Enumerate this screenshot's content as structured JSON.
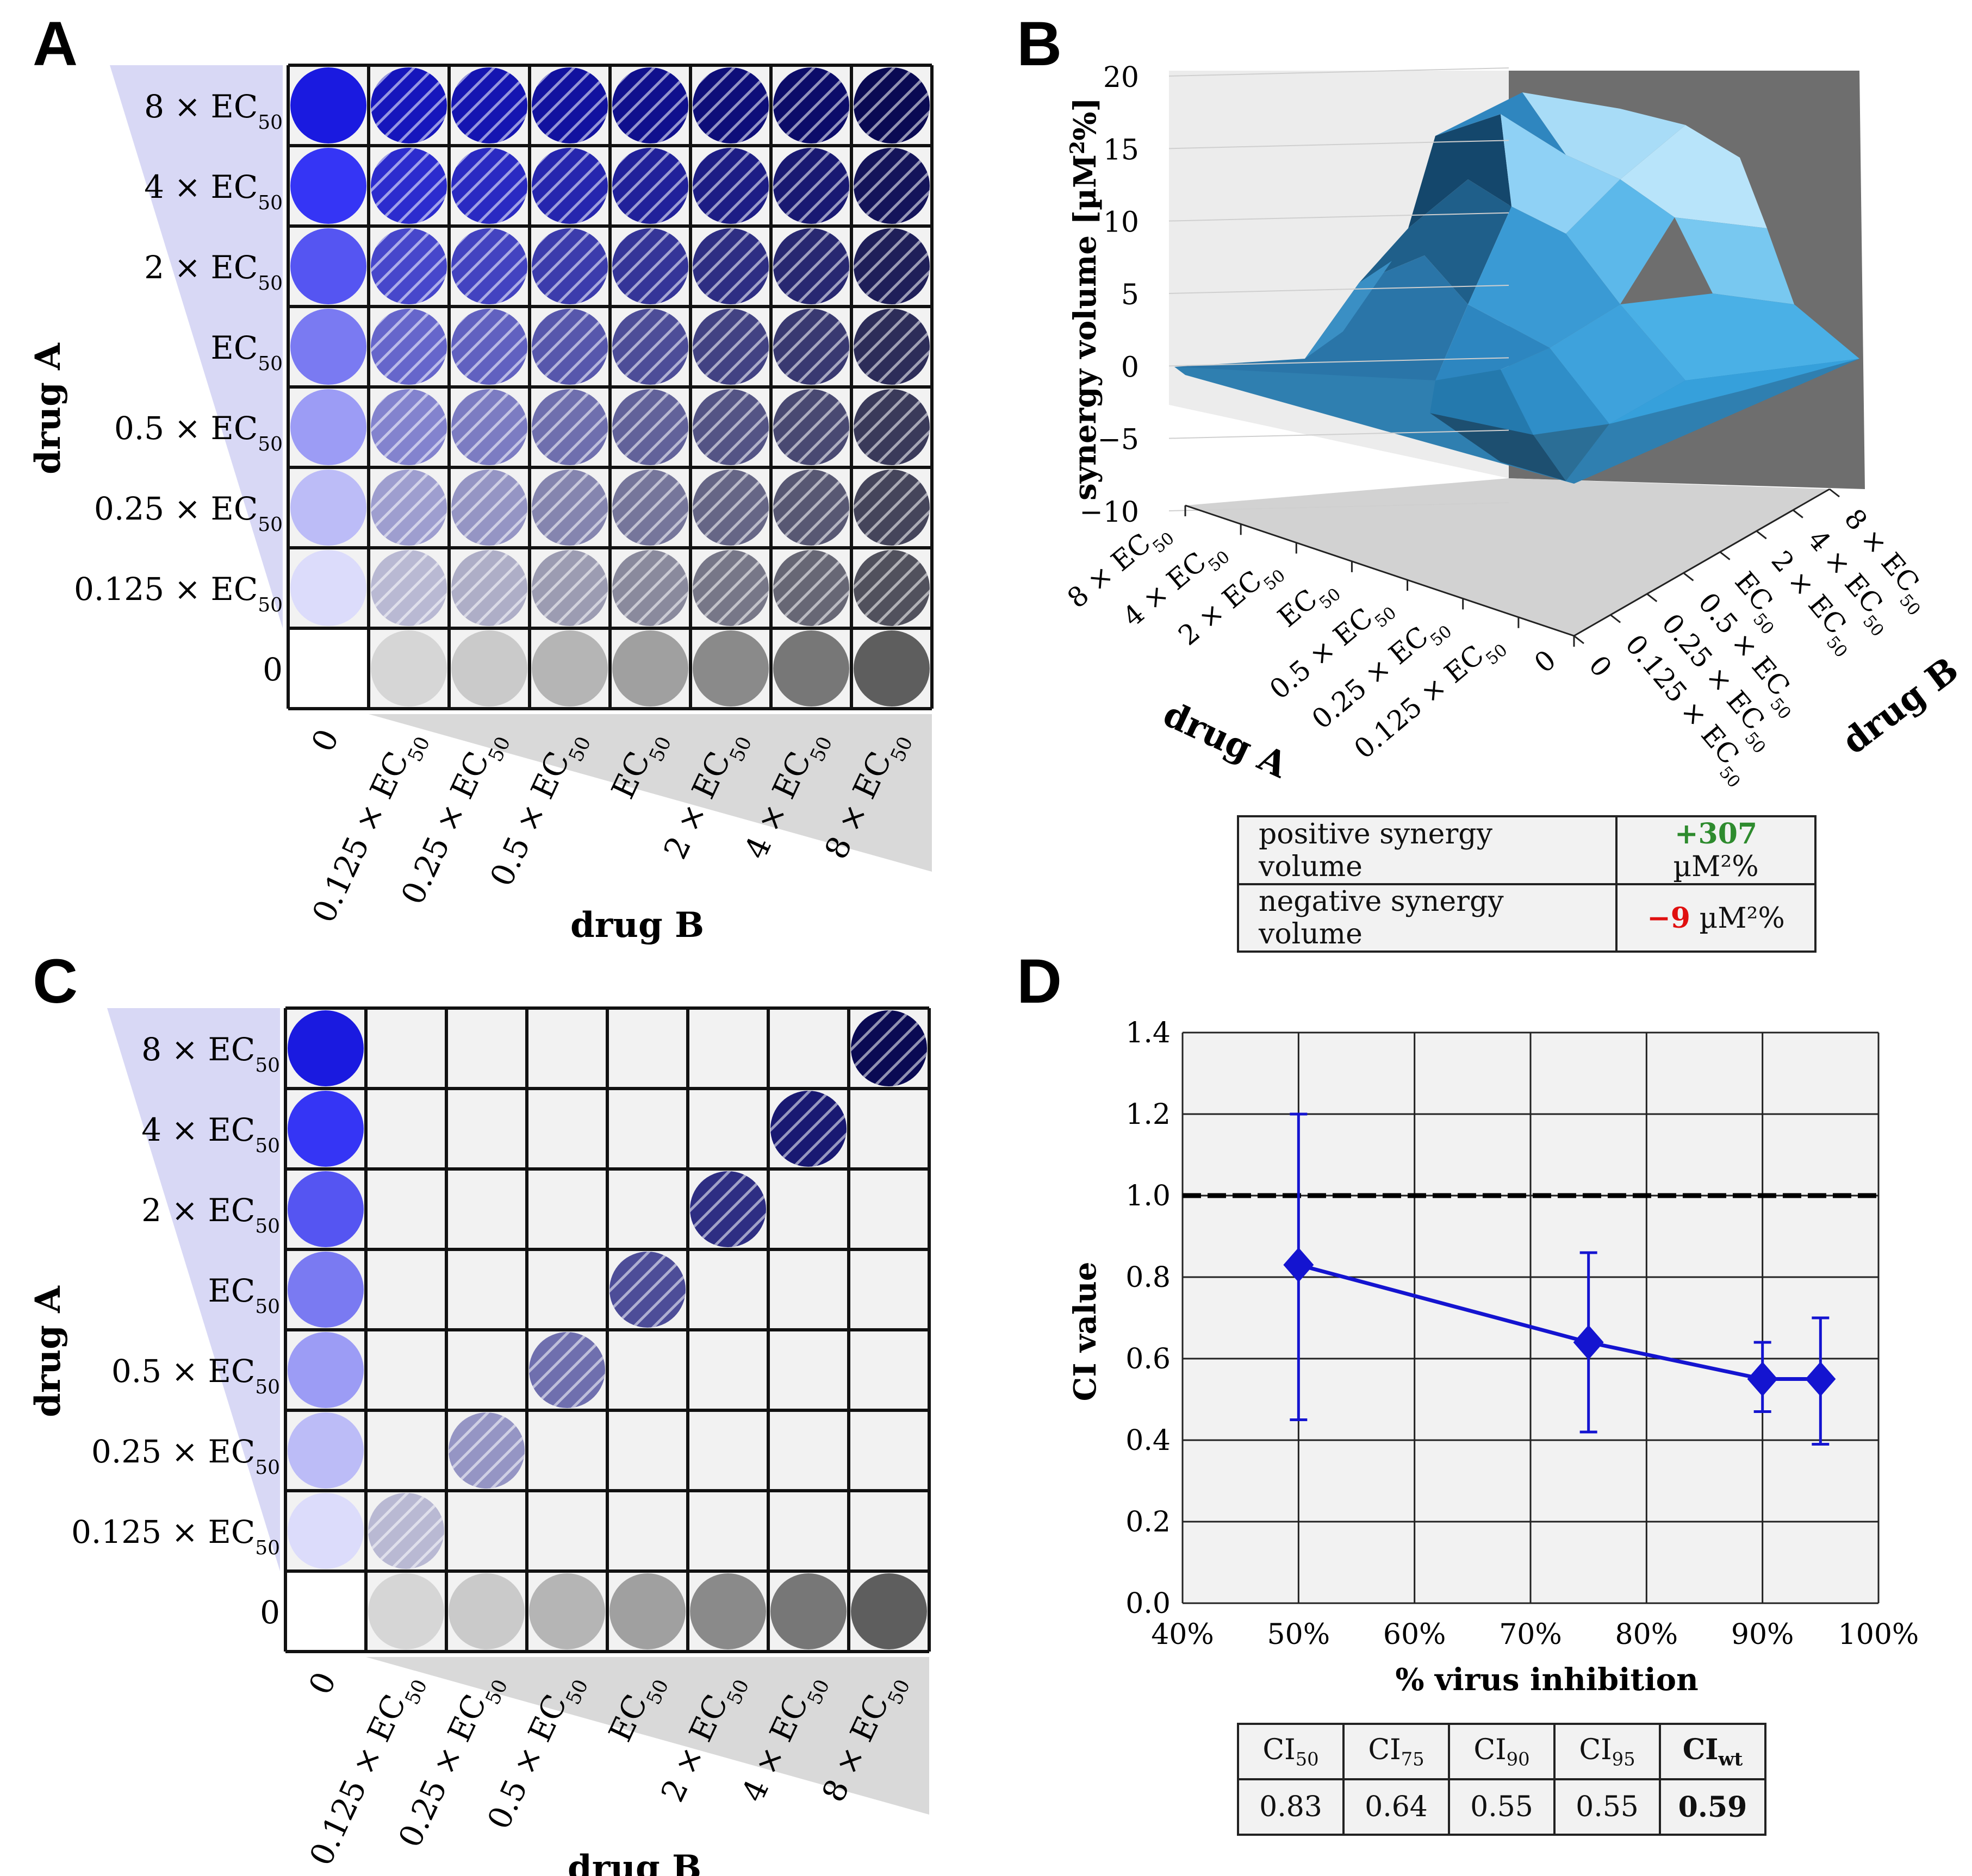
{
  "panels": {
    "a": "A",
    "b": "B",
    "c": "C",
    "d": "D"
  },
  "doses": {
    "row_labels": [
      "8 × EC",
      "4 × EC",
      "2 × EC",
      "EC",
      "0.5 × EC",
      "0.25 × EC",
      "0.125 × EC",
      "0"
    ],
    "col_labels": [
      "0",
      "0.125 × EC",
      "0.25 × EC",
      "0.5 × EC",
      "EC",
      "2 × EC",
      "4 × EC",
      "8 × EC"
    ],
    "sub": "50"
  },
  "labels": {
    "drug_a": "drug A",
    "drug_b": "drug B"
  },
  "colors": {
    "blue_series": [
      "#1a1ae0",
      "#3535f5",
      "#5555f2",
      "#7a7af2",
      "#9c9cf5",
      "#bcbcf7",
      "#dcdcfb",
      "#ffffff"
    ],
    "gray_series": [
      "#ffffff",
      "#d6d6d6",
      "#cacaca",
      "#b5b5b5",
      "#a0a0a0",
      "#8a8a8a",
      "#777777",
      "#5e5e5e"
    ],
    "triangle_blue": "#d8d8f5",
    "triangle_gray": "#d9d9d9",
    "grid_bg": "#f2f2f2",
    "surface": "#3b9fd6",
    "ci_line": "#1414d0"
  },
  "chart_data": [
    {
      "type": "heatmap",
      "panel": "A",
      "description_rows": "drug A concentration (top to bottom)",
      "rows": [
        "8 × EC50",
        "4 × EC50",
        "2 × EC50",
        "EC50",
        "0.5 × EC50",
        "0.25 × EC50",
        "0.125 × EC50",
        "0"
      ],
      "columns": [
        "0",
        "0.125 × EC50",
        "0.25 × EC50",
        "0.5 × EC50",
        "EC50",
        "2 × EC50",
        "4 × EC50",
        "8 × EC50"
      ],
      "filled_cells": "all",
      "xlabel": "drug B",
      "ylabel": "drug A"
    },
    {
      "type": "area",
      "panel": "B",
      "zlabel": "synergy volume [µM²%]",
      "zlim": [
        -10,
        20
      ],
      "zticks": [
        "20",
        "15",
        "10",
        "5",
        "0",
        "−5",
        "−10"
      ],
      "x_axis": "drug A",
      "y_axis": "drug B",
      "positive_synergy_volume": "+307",
      "negative_synergy_volume": "−9",
      "unit": "µM²%"
    },
    {
      "type": "heatmap",
      "panel": "C",
      "rows": [
        "8 × EC50",
        "4 × EC50",
        "2 × EC50",
        "EC50",
        "0.5 × EC50",
        "0.25 × EC50",
        "0.125 × EC50",
        "0"
      ],
      "columns": [
        "0",
        "0.125 × EC50",
        "0.25 × EC50",
        "0.5 × EC50",
        "EC50",
        "2 × EC50",
        "4 × EC50",
        "8 × EC50"
      ],
      "filled_cells": "first column, bottom row and constant-ratio diagonal",
      "xlabel": "drug B",
      "ylabel": "drug A"
    },
    {
      "type": "line",
      "panel": "D",
      "x": [
        0.5,
        0.75,
        0.9,
        0.95
      ],
      "series": [
        {
          "name": "CI",
          "values": [
            0.83,
            0.64,
            0.55,
            0.55
          ],
          "err_low": [
            0.45,
            0.42,
            0.47,
            0.39
          ],
          "err_high": [
            1.2,
            0.86,
            0.64,
            0.7
          ]
        }
      ],
      "reference_line": 1.0,
      "xlim": [
        0.4,
        1.0
      ],
      "ylim": [
        0.0,
        1.4
      ],
      "xticks": [
        "40%",
        "50%",
        "60%",
        "70%",
        "80%",
        "90%",
        "100%"
      ],
      "yticks": [
        "0.0",
        "0.2",
        "0.4",
        "0.6",
        "0.8",
        "1.0",
        "1.2",
        "1.4"
      ],
      "xlabel": "% virus inhibition",
      "ylabel": "CI value"
    }
  ],
  "table_b": {
    "pos_label": "positive synergy volume",
    "neg_label": "negative synergy volume",
    "pos_value": "+307",
    "neg_value": "−9",
    "unit": " µM²%"
  },
  "table_d": {
    "headers": [
      "CI",
      "CI",
      "CI",
      "CI",
      "CI"
    ],
    "subs": [
      "50",
      "75",
      "90",
      "95",
      "wt"
    ],
    "values": [
      "0.83",
      "0.64",
      "0.55",
      "0.55",
      "0.59"
    ]
  }
}
